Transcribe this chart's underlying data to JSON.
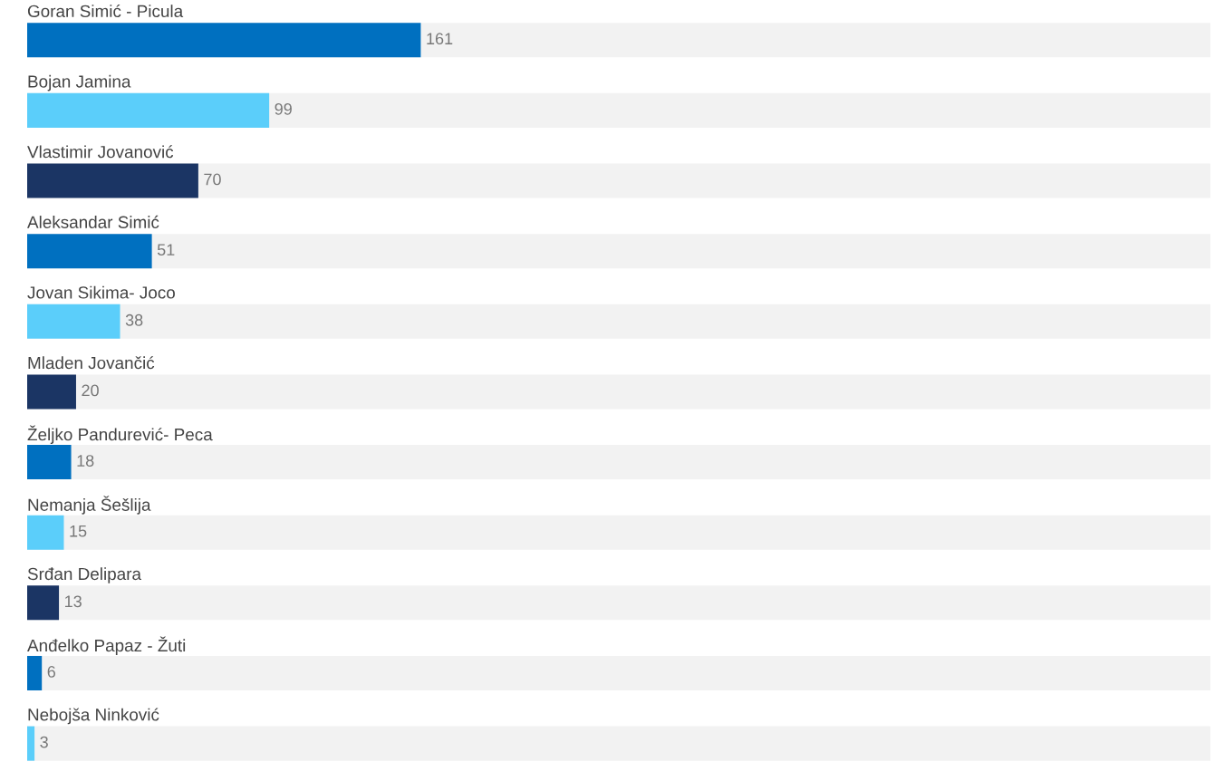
{
  "chart_data": {
    "type": "bar",
    "orientation": "horizontal",
    "categories": [
      "Goran Simić - Picula",
      "Bojan Jamina",
      "Vlastimir Jovanović",
      "Aleksandar Simić",
      "Jovan Sikima- Joco",
      "Mladen Jovančić",
      "Željko Pandurević- Peca",
      "Nemanja Šešlija",
      "Srđan Delipara",
      "Anđelko Papaz - Žuti",
      "Nebojša Ninković"
    ],
    "values": [
      161,
      99,
      70,
      51,
      38,
      20,
      18,
      15,
      13,
      6,
      3
    ],
    "colors": [
      "#0070c0",
      "#5bcefa",
      "#1b3564",
      "#0070c0",
      "#5bcefa",
      "#1b3564",
      "#0070c0",
      "#5bcefa",
      "#1b3564",
      "#0070c0",
      "#5bcefa"
    ],
    "xlim": [
      0,
      484
    ],
    "tick_labels": "y",
    "data_labels": true
  }
}
